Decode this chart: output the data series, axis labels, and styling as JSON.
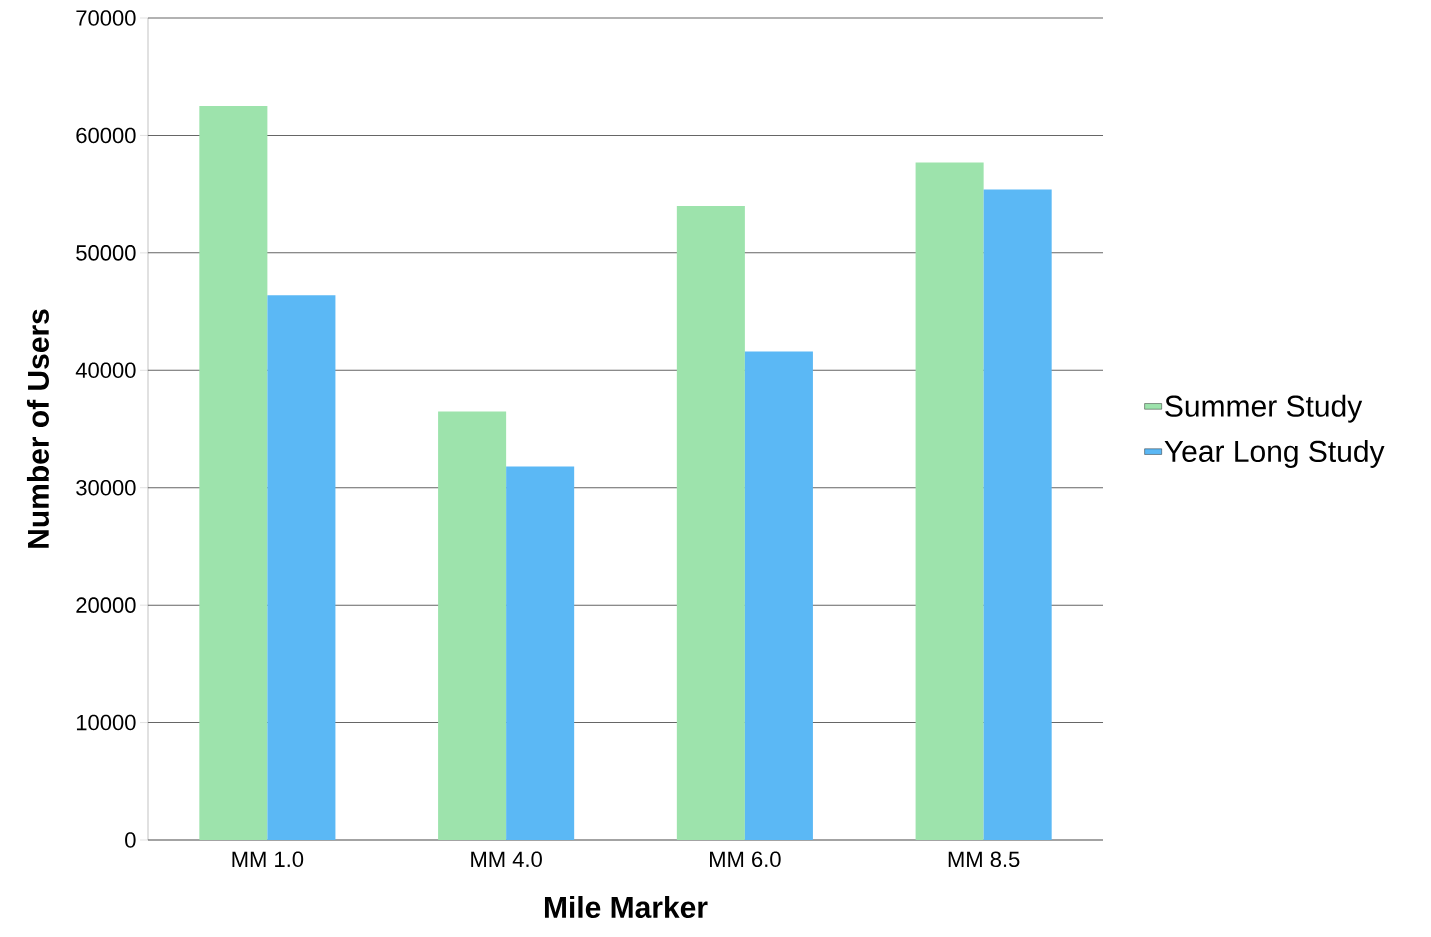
{
  "chart_data": {
    "type": "bar",
    "xlabel": "Mile Marker",
    "ylabel": "Number of Users",
    "categories": [
      "MM 1.0",
      "MM 4.0",
      "MM 6.0",
      "MM 8.5"
    ],
    "series": [
      {
        "name": "Summer Study",
        "color": "#9de3ac",
        "values": [
          62500,
          36500,
          54000,
          57700
        ]
      },
      {
        "name": "Year Long Study",
        "color": "#5bb8f5",
        "values": [
          46400,
          31800,
          41600,
          55400
        ]
      }
    ],
    "ylim": [
      0,
      70000
    ],
    "yticks": [
      0,
      10000,
      20000,
      30000,
      40000,
      50000,
      60000,
      70000
    ],
    "grid": "y",
    "legend": "right"
  }
}
